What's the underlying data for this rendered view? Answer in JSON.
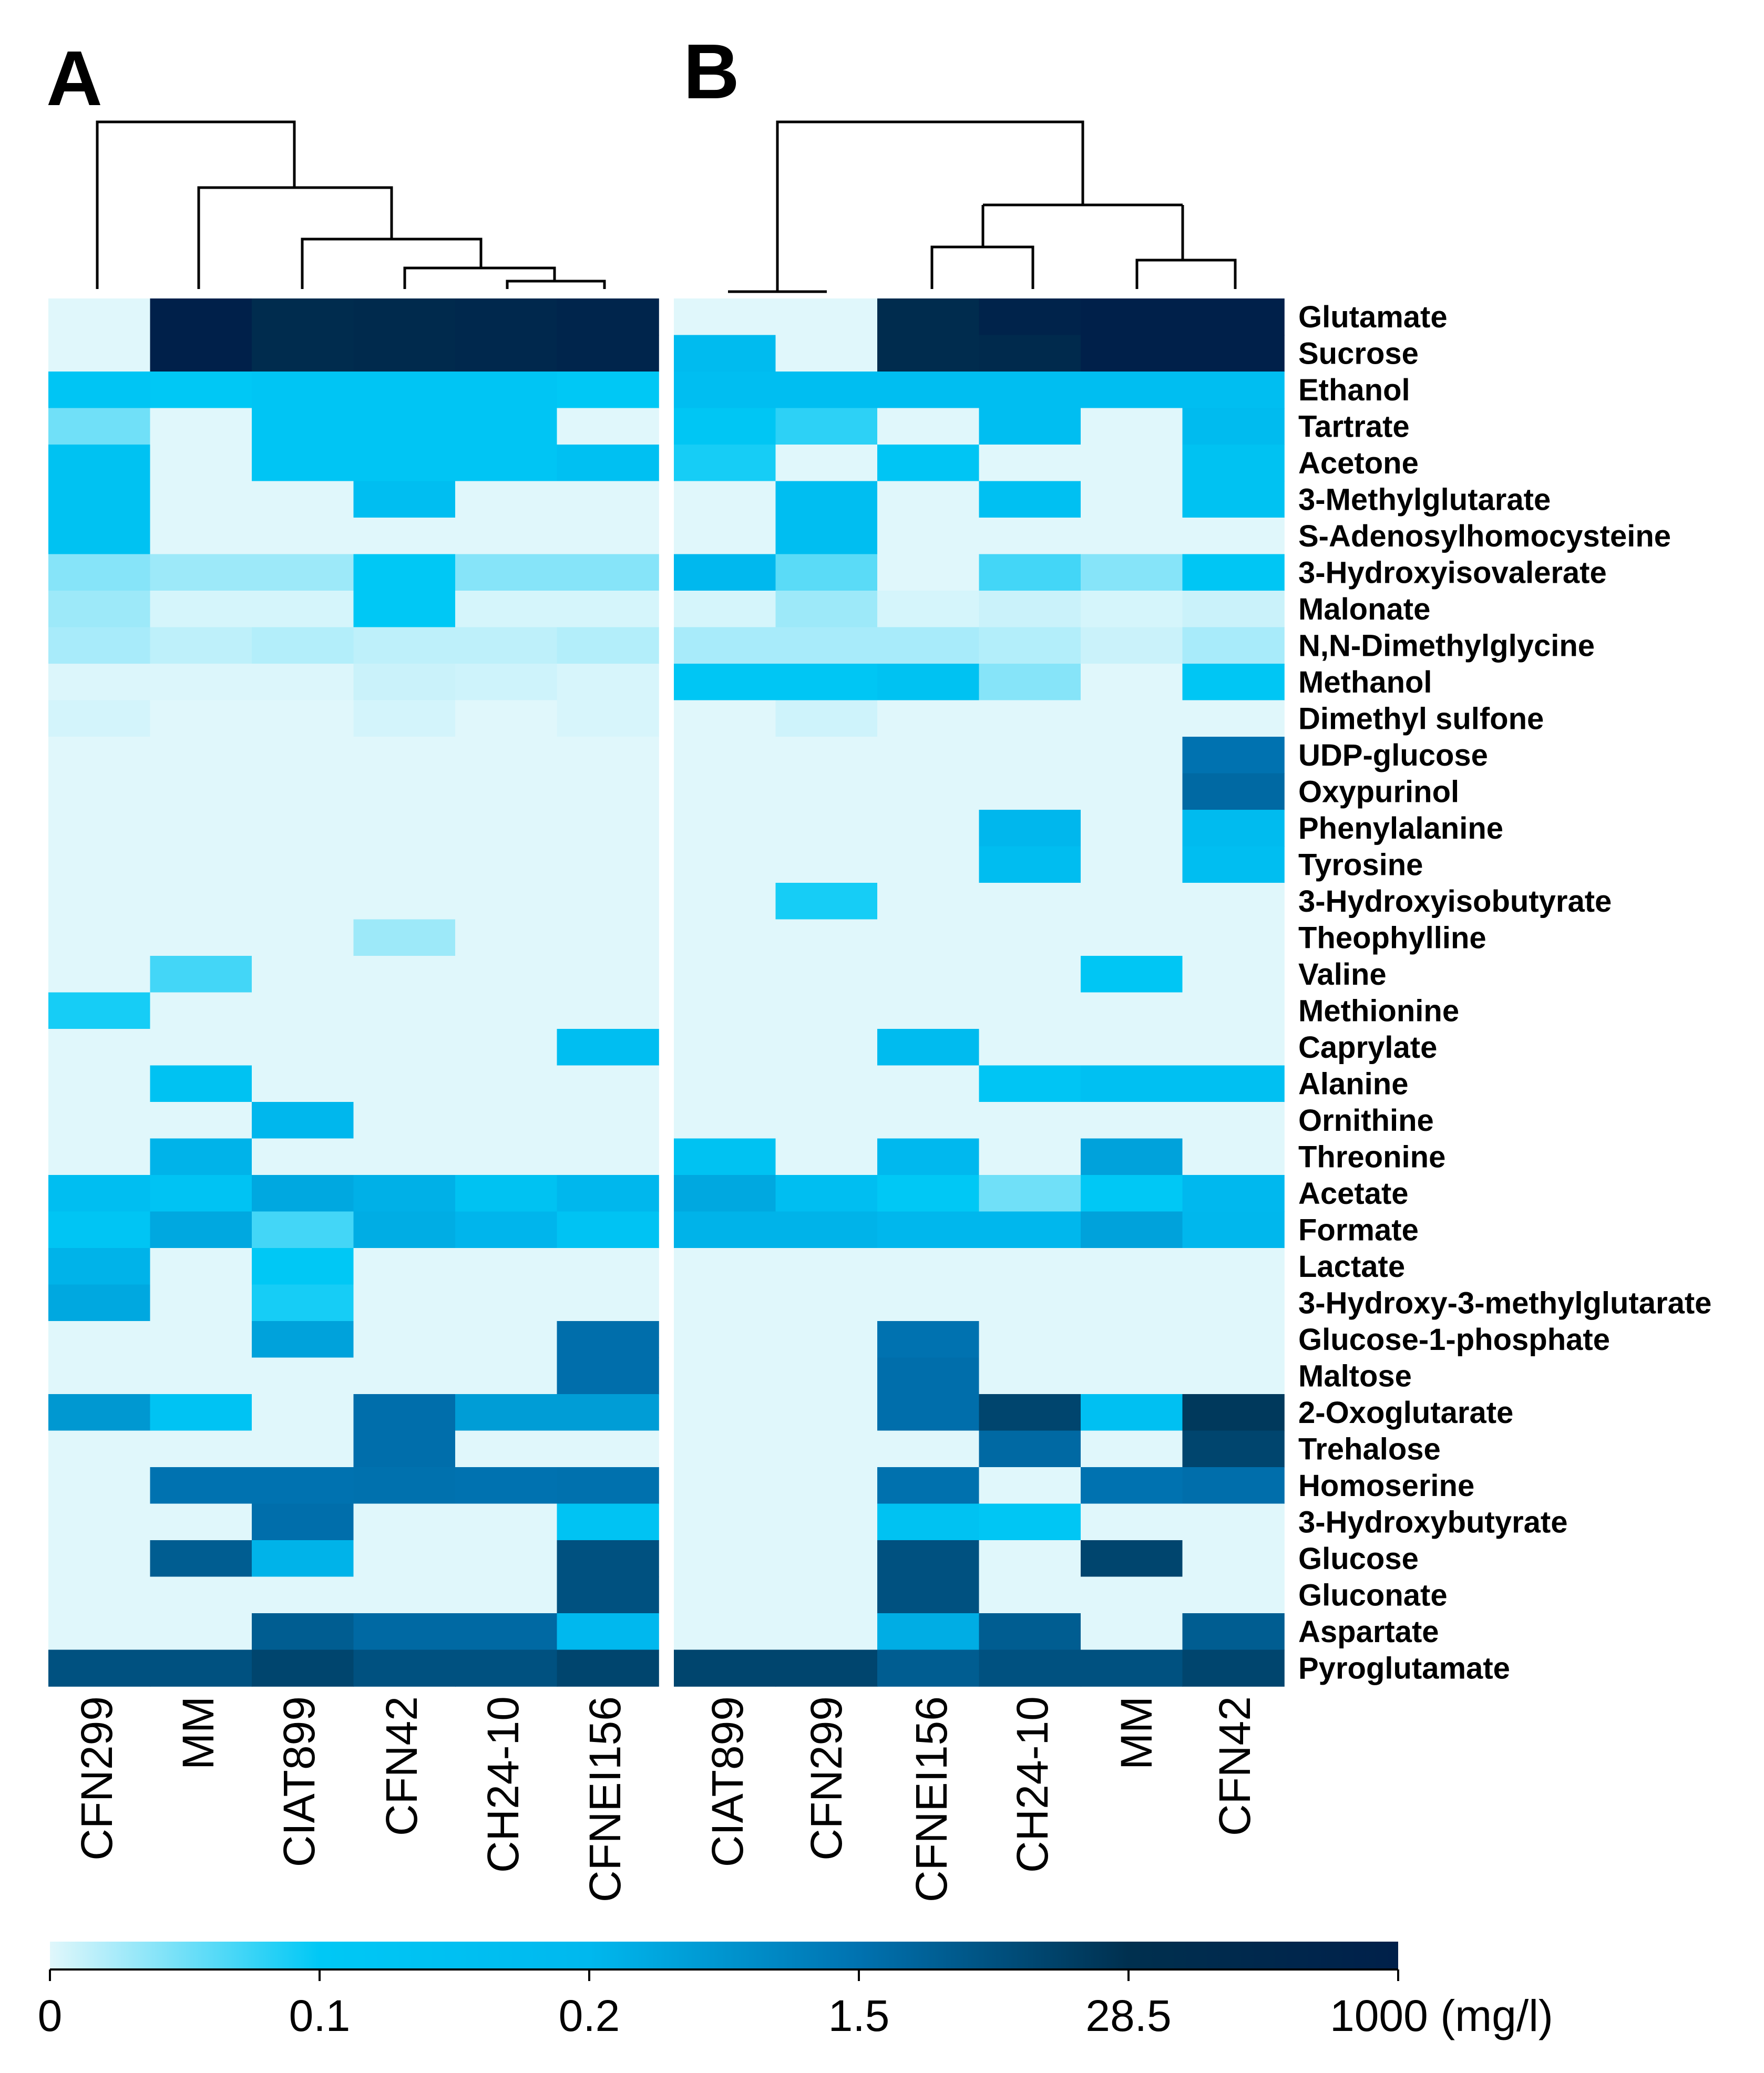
{
  "chart_data": {
    "type": "heatmap",
    "panels": [
      {
        "label": "A",
        "columns": [
          "CFN299",
          "MM",
          "CIAT899",
          "CFN42",
          "CH24-10",
          "CFNEI156"
        ],
        "matrix": [
          [
            0,
            1000,
            300,
            400,
            500,
            700
          ],
          [
            0,
            1000,
            300,
            400,
            500,
            700
          ],
          [
            0.12,
            0.1,
            0.12,
            0.12,
            0.12,
            0.1
          ],
          [
            0.05,
            0,
            0.12,
            0.12,
            0.12,
            0
          ],
          [
            0.14,
            0,
            0.12,
            0.12,
            0.12,
            0.15
          ],
          [
            0.14,
            0,
            0,
            0.16,
            0,
            0
          ],
          [
            0.14,
            0,
            0,
            0,
            0,
            0
          ],
          [
            0.04,
            0.03,
            0.03,
            0.1,
            0.04,
            0.04
          ],
          [
            0.03,
            0.005,
            0.005,
            0.1,
            0.005,
            0.005
          ],
          [
            0.025,
            0.015,
            0.02,
            0.015,
            0.015,
            0.02
          ],
          [
            0.002,
            0.002,
            0.002,
            0.01,
            0.008,
            0.004
          ],
          [
            0.006,
            0,
            0,
            0.006,
            0,
            0.004
          ],
          [
            0,
            0,
            0,
            0,
            0,
            0
          ],
          [
            0,
            0,
            0,
            0,
            0,
            0
          ],
          [
            0,
            0,
            0,
            0,
            0,
            0
          ],
          [
            0,
            0,
            0,
            0,
            0,
            0
          ],
          [
            0,
            0,
            0,
            0,
            0,
            0
          ],
          [
            0,
            0,
            0,
            0.03,
            0,
            0
          ],
          [
            0,
            0.07,
            0,
            0,
            0,
            0
          ],
          [
            0.09,
            0,
            0,
            0,
            0,
            0
          ],
          [
            0,
            0,
            0,
            0,
            0,
            0.16
          ],
          [
            0,
            0.14,
            0,
            0,
            0,
            0
          ],
          [
            0,
            0,
            0.22,
            0,
            0,
            0
          ],
          [
            0,
            0.3,
            0,
            0,
            0,
            0
          ],
          [
            0.16,
            0.13,
            0.5,
            0.35,
            0.14,
            0.22
          ],
          [
            0.12,
            0.5,
            0.07,
            0.4,
            0.25,
            0.13
          ],
          [
            0.3,
            0,
            0.1,
            0,
            0,
            0
          ],
          [
            0.5,
            0,
            0.09,
            0,
            0,
            0
          ],
          [
            0,
            0,
            0.6,
            0,
            0,
            3
          ],
          [
            0,
            0,
            0,
            0,
            0,
            3
          ],
          [
            0.8,
            0.13,
            0,
            3,
            0.7,
            0.7
          ],
          [
            0,
            0,
            0,
            3,
            0,
            0
          ],
          [
            0,
            1.5,
            1.5,
            2,
            1.5,
            2
          ],
          [
            0,
            0,
            3,
            0,
            0,
            0.13
          ],
          [
            0,
            10,
            0.3,
            0,
            0,
            15
          ],
          [
            0,
            0,
            0,
            0,
            0,
            15
          ],
          [
            0,
            0,
            10,
            5,
            5,
            0.2
          ],
          [
            15,
            15,
            20,
            15,
            15,
            20
          ]
        ]
      },
      {
        "label": "B",
        "columns": [
          "CIAT899",
          "CFN299",
          "CFNEI156",
          "CH24-10",
          "MM",
          "CFN42"
        ],
        "matrix": [
          [
            0,
            0,
            300,
            800,
            1000,
            1000
          ],
          [
            0.18,
            0,
            300,
            400,
            1000,
            1000
          ],
          [
            0.16,
            0.16,
            0.16,
            0.16,
            0.16,
            0.16
          ],
          [
            0.11,
            0.08,
            0,
            0.16,
            0,
            0.18
          ],
          [
            0.09,
            0,
            0.12,
            0,
            0,
            0.14
          ],
          [
            0,
            0.16,
            0,
            0.15,
            0,
            0.14
          ],
          [
            0,
            0.16,
            0,
            0,
            0,
            0
          ],
          [
            0.2,
            0.06,
            0,
            0.07,
            0.04,
            0.11
          ],
          [
            0.005,
            0.03,
            0.005,
            0.01,
            0.005,
            0.01
          ],
          [
            0.025,
            0.025,
            0.025,
            0.02,
            0.01,
            0.025
          ],
          [
            0.11,
            0.11,
            0.14,
            0.04,
            0,
            0.11
          ],
          [
            0,
            0.008,
            0,
            0,
            0,
            0
          ],
          [
            0,
            0,
            0,
            0,
            0,
            1.5
          ],
          [
            0,
            0,
            0,
            0,
            0,
            5
          ],
          [
            0,
            0,
            0,
            0.22,
            0,
            0.18
          ],
          [
            0,
            0,
            0,
            0.17,
            0,
            0.16
          ],
          [
            0,
            0.09,
            0,
            0,
            0,
            0
          ],
          [
            0,
            0,
            0,
            0,
            0,
            0
          ],
          [
            0,
            0,
            0,
            0,
            0.11,
            0
          ],
          [
            0,
            0,
            0,
            0,
            0,
            0
          ],
          [
            0,
            0,
            0.18,
            0,
            0,
            0
          ],
          [
            0,
            0,
            0,
            0.12,
            0.15,
            0.15
          ],
          [
            0,
            0,
            0,
            0,
            0,
            0
          ],
          [
            0.14,
            0,
            0.2,
            0,
            0.6,
            0
          ],
          [
            0.5,
            0.16,
            0.1,
            0.05,
            0.1,
            0.2
          ],
          [
            0.3,
            0.3,
            0.22,
            0.22,
            0.6,
            0.22
          ],
          [
            0,
            0,
            0,
            0,
            0,
            0
          ],
          [
            0,
            0,
            0,
            0,
            0,
            0
          ],
          [
            0,
            0,
            1.5,
            0,
            0,
            0
          ],
          [
            0,
            0,
            3,
            0,
            0,
            0
          ],
          [
            0,
            0,
            3,
            20,
            0.15,
            25
          ],
          [
            0,
            0,
            0,
            5,
            0,
            20
          ],
          [
            0,
            0,
            2,
            0,
            1.5,
            3
          ],
          [
            0,
            0,
            0.14,
            0.11,
            0,
            0
          ],
          [
            0,
            0,
            15,
            0,
            20,
            0
          ],
          [
            0,
            0,
            15,
            0,
            0,
            0
          ],
          [
            0,
            0,
            0.4,
            10,
            0,
            10
          ],
          [
            20,
            20,
            10,
            15,
            15,
            20
          ]
        ]
      }
    ],
    "row_labels": [
      "Glutamate",
      "Sucrose",
      "Ethanol",
      "Tartrate",
      "Acetone",
      "3-Methylglutarate",
      "S-Adenosylhomocysteine",
      "3-Hydroxyisovalerate",
      "Malonate",
      "N,N-Dimethylglycine",
      "Methanol",
      "Dimethyl sulfone",
      "UDP-glucose",
      "Oxypurinol",
      "Phenylalanine",
      "Tyrosine",
      "3-Hydroxyisobutyrate",
      "Theophylline",
      "Valine",
      "Methionine",
      "Caprylate",
      "Alanine",
      "Ornithine",
      "Threonine",
      "Acetate",
      "Formate",
      "Lactate",
      "3-Hydroxy-3-methylglutarate",
      "Glucose-1-phosphate",
      "Maltose",
      "2-Oxoglutarate",
      "Trehalose",
      "Homoserine",
      "3-Hydroxybutyrate",
      "Glucose",
      "Gluconate",
      "Aspartate",
      "Pyroglutamate"
    ],
    "colorbar": {
      "ticks": [
        "0",
        "0.1",
        "0.2",
        "1.5",
        "28.5",
        "1000 (mg/l)"
      ],
      "tick_values": [
        0,
        0.1,
        0.2,
        1.5,
        28.5,
        1000
      ],
      "colors": [
        "#e0f7fb",
        "#00c8f5",
        "#0072b0",
        "#00204a"
      ]
    }
  }
}
